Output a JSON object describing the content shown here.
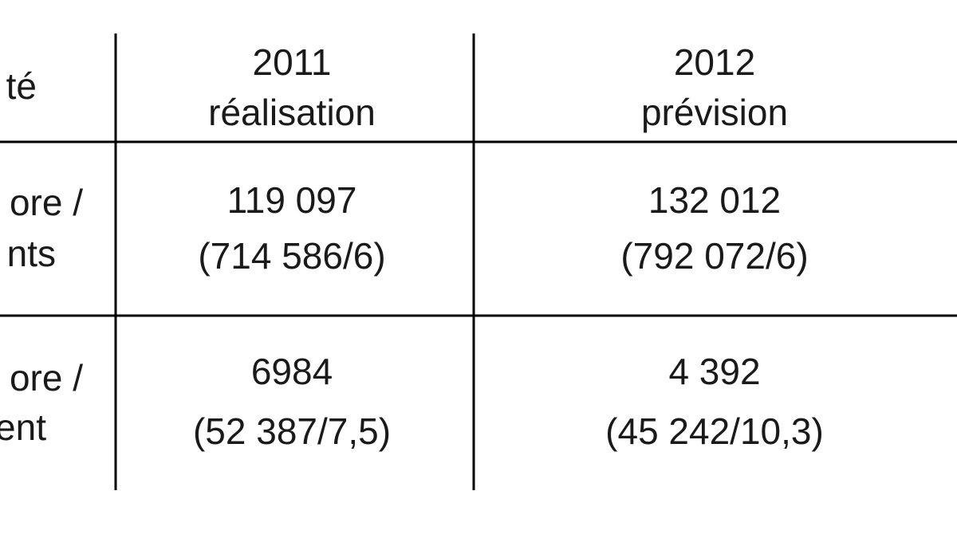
{
  "table": {
    "header": [
      [
        "té"
      ],
      [
        "2011",
        "réalisation"
      ],
      [
        "2012",
        "prévision"
      ]
    ],
    "rows": [
      [
        [
          "ore /",
          "nts"
        ],
        [
          "119 097",
          "(714 586/6)"
        ],
        [
          "132 012",
          "(792 072/6)"
        ]
      ],
      [
        [
          "ore /",
          "ent"
        ],
        [
          "6984",
          "(52 387/7,5)"
        ],
        [
          "4 392",
          "(45 242/10,3)"
        ]
      ]
    ]
  }
}
